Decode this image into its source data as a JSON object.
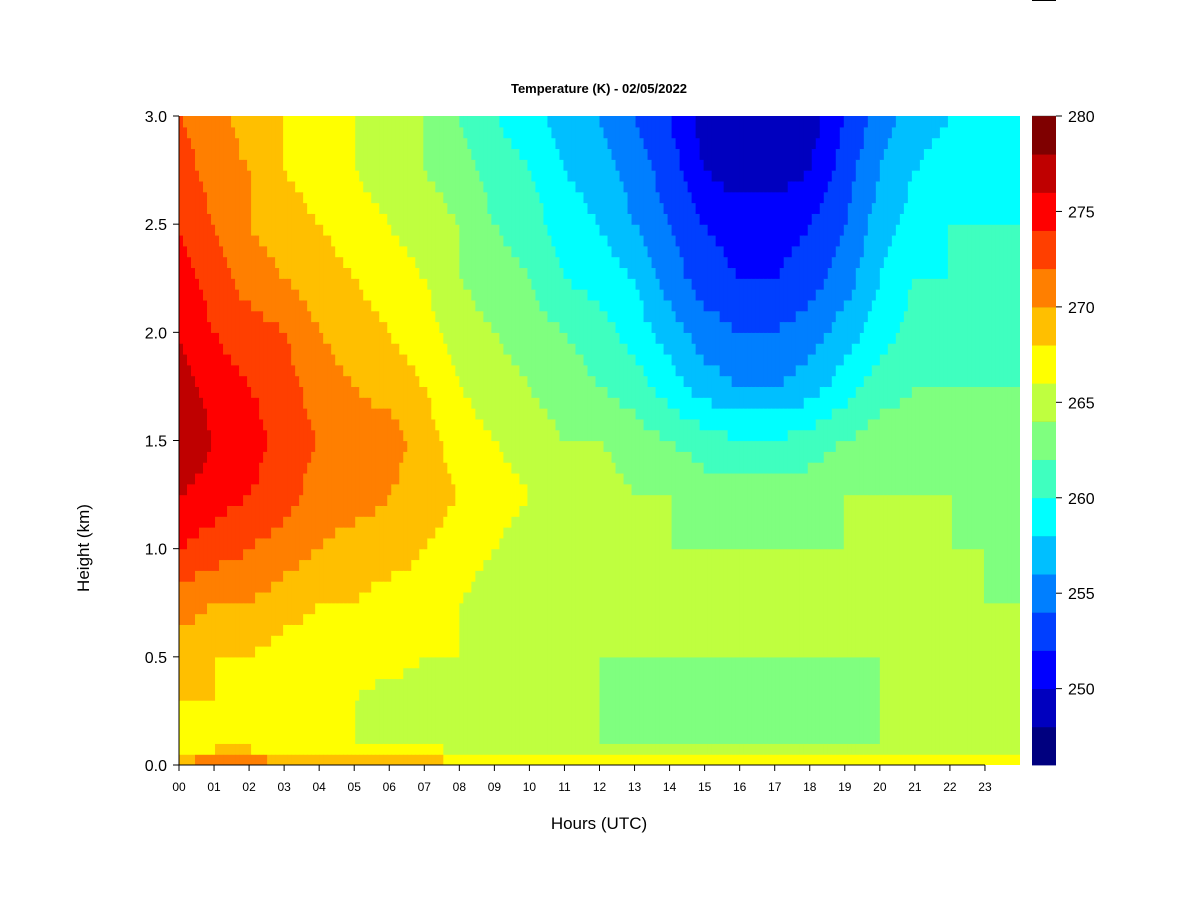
{
  "chart_data": {
    "type": "heatmap",
    "title": "Temperature (K) - 02/05/2022",
    "xlabel": "Hours (UTC)",
    "ylabel": "Height (km)",
    "xlim": [
      0,
      24
    ],
    "ylim": [
      0,
      3
    ],
    "x_ticks": [
      "00",
      "01",
      "02",
      "03",
      "04",
      "05",
      "06",
      "07",
      "08",
      "09",
      "10",
      "11",
      "12",
      "13",
      "14",
      "15",
      "16",
      "17",
      "18",
      "19",
      "20",
      "21",
      "22",
      "23"
    ],
    "y_ticks": [
      "0.0",
      "0.5",
      "1.0",
      "1.5",
      "2.0",
      "2.5",
      "3.0"
    ],
    "colorbar": {
      "min": 246,
      "max": 280,
      "step": 2,
      "tick_labels": [
        "250",
        "255",
        "260",
        "265",
        "270",
        "275",
        "280"
      ],
      "colors": [
        "#00007f",
        "#0000bf",
        "#0000ff",
        "#003fff",
        "#007fff",
        "#00bfff",
        "#00ffff",
        "#3fffbf",
        "#7fff7f",
        "#bfff3f",
        "#ffff00",
        "#ffbf00",
        "#ff7f00",
        "#ff3f00",
        "#ff0000",
        "#bf0000",
        "#7f0000"
      ]
    },
    "grid": false,
    "hours": [
      0,
      1,
      2,
      3,
      4,
      5,
      6,
      7,
      8,
      9,
      10,
      11,
      12,
      13,
      14,
      15,
      16,
      17,
      18,
      19,
      20,
      21,
      22,
      23,
      24
    ],
    "heights_km": [
      0.0,
      0.05,
      0.1,
      0.3,
      0.5,
      0.75,
      1.0,
      1.25,
      1.5,
      1.75,
      2.0,
      2.25,
      2.5,
      2.75,
      3.0
    ],
    "values": [
      [
        271,
        272,
        272,
        271,
        271,
        270,
        270,
        270,
        269,
        269,
        269,
        268,
        268,
        268,
        268,
        268,
        268,
        268,
        268,
        268,
        268,
        268,
        268,
        268,
        267
      ],
      [
        268,
        269,
        269,
        268,
        268,
        267,
        267,
        267,
        266,
        266,
        265,
        265,
        265,
        265,
        265,
        265,
        265,
        265,
        265,
        265,
        265,
        265,
        265,
        265,
        265
      ],
      [
        267,
        267,
        267,
        266,
        266,
        266,
        266,
        266,
        265,
        265,
        264,
        264,
        264,
        263,
        263,
        263,
        263,
        263,
        263,
        264,
        264,
        264,
        264,
        264,
        264
      ],
      [
        268,
        268,
        267,
        267,
        266,
        266,
        265,
        265,
        265,
        264,
        264,
        264,
        264,
        263,
        263,
        263,
        263,
        263,
        263,
        263,
        264,
        264,
        264,
        264,
        264
      ],
      [
        269,
        268,
        268,
        267,
        267,
        267,
        267,
        266,
        266,
        265,
        265,
        264,
        264,
        264,
        264,
        264,
        264,
        264,
        264,
        264,
        264,
        264,
        264,
        264,
        264
      ],
      [
        271,
        270,
        270,
        269,
        268,
        268,
        267,
        267,
        266,
        265,
        265,
        264,
        264,
        264,
        264,
        264,
        264,
        264,
        264,
        264,
        264,
        264,
        264,
        264,
        264
      ],
      [
        274,
        273,
        272,
        271,
        270,
        269,
        269,
        268,
        267,
        266,
        265,
        265,
        264,
        264,
        264,
        264,
        264,
        264,
        264,
        264,
        264,
        264,
        264,
        264,
        263
      ],
      [
        276,
        275,
        274,
        273,
        271,
        271,
        270,
        269,
        268,
        267,
        266,
        265,
        265,
        264,
        264,
        263,
        263,
        263,
        263,
        264,
        264,
        264,
        264,
        263,
        263
      ],
      [
        278,
        276,
        275,
        273,
        272,
        271,
        271,
        269,
        267,
        266,
        265,
        264,
        264,
        263,
        262,
        261,
        260,
        260,
        261,
        262,
        263,
        263,
        263,
        263,
        262
      ],
      [
        277,
        275,
        274,
        273,
        271,
        270,
        269,
        268,
        266,
        265,
        264,
        263,
        262,
        261,
        259,
        257,
        256,
        256,
        257,
        259,
        261,
        262,
        262,
        262,
        262
      ],
      [
        276,
        274,
        273,
        272,
        270,
        269,
        268,
        267,
        265,
        264,
        263,
        262,
        261,
        259,
        257,
        255,
        254,
        254,
        255,
        257,
        259,
        261,
        261,
        261,
        261
      ],
      [
        275,
        273,
        271,
        270,
        269,
        268,
        267,
        266,
        264,
        263,
        262,
        260,
        259,
        258,
        255,
        253,
        252,
        252,
        253,
        255,
        258,
        260,
        260,
        260,
        260
      ],
      [
        274,
        272,
        270,
        269,
        268,
        267,
        266,
        265,
        264,
        262,
        261,
        259,
        258,
        256,
        254,
        252,
        251,
        251,
        252,
        254,
        257,
        259,
        260,
        260,
        260
      ],
      [
        273,
        271,
        270,
        268,
        267,
        266,
        265,
        264,
        263,
        261,
        260,
        258,
        257,
        255,
        253,
        250,
        249,
        249,
        250,
        253,
        256,
        258,
        259,
        259,
        259
      ],
      [
        272,
        271,
        269,
        268,
        267,
        266,
        265,
        264,
        262,
        260,
        259,
        257,
        256,
        254,
        252,
        249,
        248,
        248,
        249,
        252,
        255,
        257,
        258,
        259,
        259
      ]
    ]
  }
}
